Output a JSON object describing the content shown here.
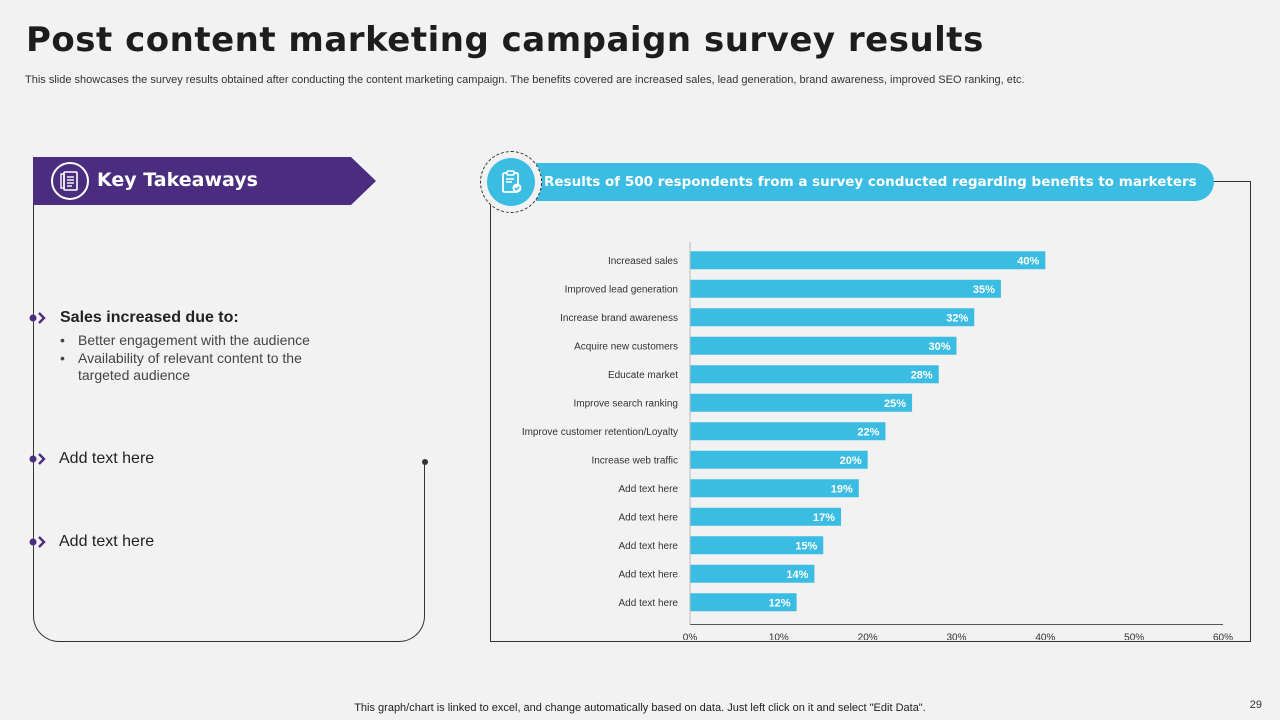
{
  "header": {
    "title": "Post content marketing campaign survey results",
    "subtitle": "This slide showcases the survey results obtained after conducting the content marketing campaign. The benefits covered are increased sales, lead generation, brand awareness, improved SEO ranking, etc."
  },
  "takeaways": {
    "title": "Key Takeaways",
    "point1_title": "Sales increased due to:",
    "point1_items": [
      "Better engagement with the audience",
      "Availability  of relevant content to the targeted audience"
    ],
    "point2": "Add text here",
    "point3": "Add text here"
  },
  "results": {
    "title": "Results of 500 respondents from a survey conducted regarding benefits to marketers"
  },
  "colors": {
    "purple": "#4b2d7f",
    "bar": "#3bbde3"
  },
  "chart_data": {
    "type": "bar",
    "orientation": "horizontal",
    "categories": [
      "Increased sales",
      "Improved lead generation",
      "Increase brand awareness",
      "Acquire new customers",
      "Educate market",
      "Improve search ranking",
      "Improve customer retention/Loyalty",
      "Increase web traffic",
      "Add text here",
      "Add text here",
      "Add text here",
      "Add text here",
      "Add text here"
    ],
    "values": [
      40,
      35,
      32,
      30,
      28,
      25,
      22,
      20,
      19,
      17,
      15,
      14,
      12
    ],
    "value_labels": [
      "40%",
      "35%",
      "32%",
      "30%",
      "28%",
      "25%",
      "22%",
      "20%",
      "19%",
      "17%",
      "15%",
      "14%",
      "12%"
    ],
    "xlim": [
      0,
      60
    ],
    "xticks": [
      0,
      10,
      20,
      30,
      40,
      50,
      60
    ],
    "xtick_labels": [
      "0%",
      "10%",
      "20%",
      "30%",
      "40%",
      "50%",
      "60%"
    ],
    "grid": false
  },
  "footer": {
    "note": "This graph/chart is linked to excel,  and change automatically based on data. Just left click on it and select \"Edit Data\".",
    "page": "29"
  }
}
